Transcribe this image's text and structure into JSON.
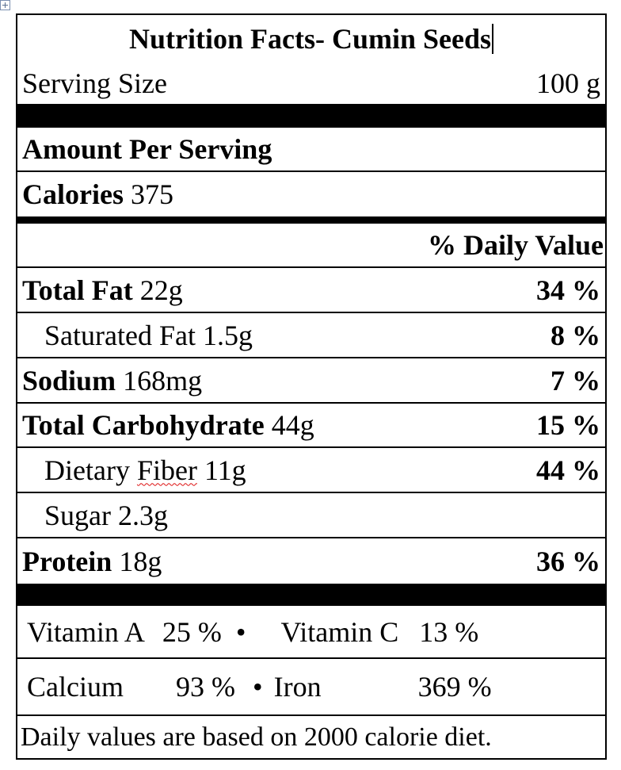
{
  "title": "Nutrition Facts- Cumin Seeds",
  "serving": {
    "label": "Serving Size",
    "value": "100 g"
  },
  "amount_per_serving": "Amount Per Serving",
  "calories": {
    "label": "Calories",
    "value": "375"
  },
  "daily_value_header": "% Daily Value",
  "nutrients": [
    {
      "name": "Total Fat",
      "amount": "22g",
      "dv": "34 %"
    },
    {
      "name": "Saturated Fat",
      "amount": "1.5g",
      "dv": "8 %"
    },
    {
      "name": "Sodium",
      "amount": "168mg",
      "dv": "7 %"
    },
    {
      "name": "Total Carbohydrate",
      "amount": "44g",
      "dv": "15 %"
    },
    {
      "name": "Dietary Fiber",
      "amount": "11g",
      "dv": "44 %"
    },
    {
      "name": "Sugar",
      "amount": "2.3g",
      "dv": ""
    },
    {
      "name": "Protein",
      "amount": "18g",
      "dv": "36 %"
    }
  ],
  "vitamins": {
    "vitamin_a": {
      "label": "Vitamin A",
      "value": "25 %"
    },
    "vitamin_c": {
      "label": "Vitamin C",
      "value": "13 %"
    },
    "calcium": {
      "label": "Calcium",
      "value": "93 %"
    },
    "iron": {
      "label": "Iron",
      "value": "369 %"
    },
    "separator": "•"
  },
  "footnote": "Daily values are based on 2000 calorie diet."
}
